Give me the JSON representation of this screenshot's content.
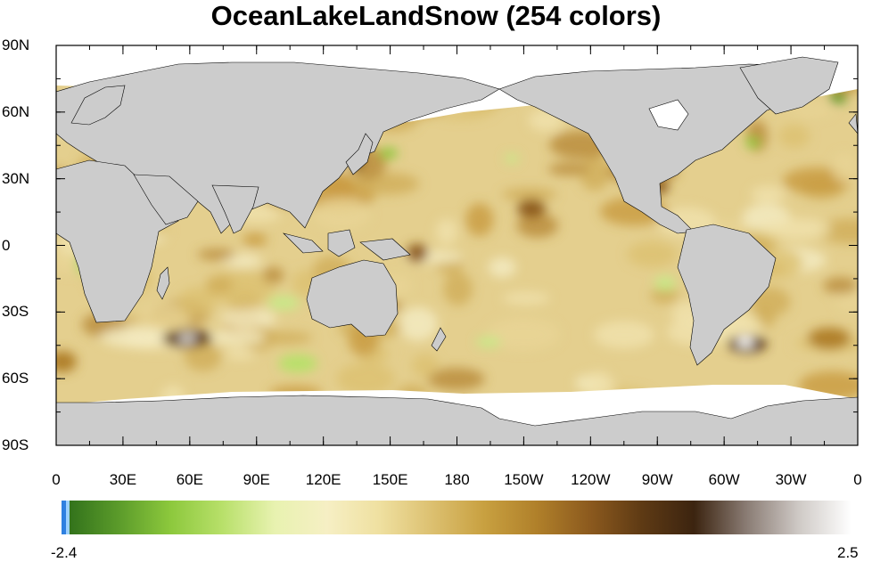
{
  "title": "OceanLakeLandSnow (254 colors)",
  "colors": {
    "ocean_palette": [
      "#2f6f1a",
      "#5a9a2a",
      "#8cc83c",
      "#b8e06a",
      "#e8f2b0",
      "#f6efc4",
      "#efe0a0",
      "#dcc070",
      "#c8a040",
      "#b0802a",
      "#8c5a1e",
      "#5e3a14",
      "#3c2410",
      "#8a7c74",
      "#cfcac6",
      "#ffffff"
    ],
    "land": "#cccccc",
    "ice": "#ffffff",
    "coast": "#000000"
  },
  "lon_labels": [
    "0",
    "30E",
    "60E",
    "90E",
    "120E",
    "150E",
    "180",
    "150W",
    "120W",
    "90W",
    "60W",
    "30W",
    "0"
  ],
  "lat_labels": [
    "90N",
    "60N",
    "30N",
    "0",
    "30S",
    "60S",
    "90S"
  ],
  "colorbar": {
    "min_label": "-2.4",
    "max_label": "2.5"
  },
  "chart_data": {
    "type": "heatmap",
    "title": "OceanLakeLandSnow (254 colors)",
    "x_range": [
      0,
      360
    ],
    "y_range": [
      -90,
      90
    ],
    "colorbar_min": -2.4,
    "colorbar_max": 2.5,
    "colorbar_levels": 254
  }
}
